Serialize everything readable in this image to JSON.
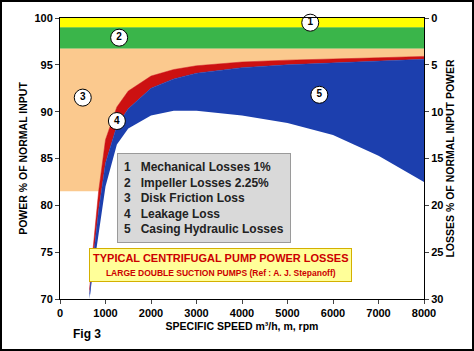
{
  "chart_data": {
    "type": "area",
    "title": "TYPICAL CENTRIFUGAL PUMP POWER LOSSES",
    "subtitle": "LARGE DOUBLE SUCTION PUMPS (Ref : A. J. Stepanoff)",
    "x_label": "SPECIFIC SPEED m³/h, m, rpm",
    "y_label": "POWER % OF NORMAL INPUT",
    "y2_label": "LOSSES % OF NORMAL INPUT POWER",
    "annotations": [
      "Fig 3"
    ],
    "xlim": [
      0,
      8000
    ],
    "xticks": [
      0,
      1000,
      2000,
      3000,
      4000,
      5000,
      6000,
      7000,
      8000
    ],
    "ylim": [
      70,
      100
    ],
    "yticks": [
      70,
      75,
      80,
      85,
      90,
      95,
      100
    ],
    "y2lim": [
      30,
      0
    ],
    "y2ticks": [
      0,
      5,
      10,
      15,
      20,
      25,
      30
    ],
    "grid": false,
    "series": [
      {
        "number": "3",
        "name": "Disk Friction Loss",
        "color": "#fbc98e",
        "x": [
          0,
          850,
          1000,
          1250,
          1500,
          2000,
          2500,
          3000,
          4000,
          5000,
          6000,
          7000,
          8000
        ],
        "lower": [
          81.5,
          81.5,
          87,
          90.5,
          92.2,
          93.8,
          94.5,
          94.9,
          95.3,
          95.5,
          95.6,
          95.75,
          95.9
        ],
        "values": [
          96.75,
          96.75,
          96.75,
          96.75,
          96.75,
          96.75,
          96.75,
          96.75,
          96.75,
          96.75,
          96.75,
          96.75,
          96.75
        ],
        "label_at": [
          500,
          91.5
        ]
      },
      {
        "number": "4",
        "name": "Leakage Loss",
        "color": "#cc1111",
        "x": [
          650,
          700,
          850,
          1000,
          1250,
          1500,
          2000,
          2500,
          3000,
          4000,
          5000,
          6000,
          7000,
          8000
        ],
        "lower": [
          70.5,
          73,
          79.5,
          84.5,
          88.5,
          90.3,
          92.5,
          93.5,
          94.1,
          94.7,
          95.0,
          95.2,
          95.4,
          95.6
        ],
        "values": [
          71,
          74,
          81.5,
          87,
          90.5,
          92.2,
          93.8,
          94.5,
          94.9,
          95.3,
          95.5,
          95.6,
          95.75,
          95.9
        ],
        "label_at": [
          1250,
          89
        ]
      },
      {
        "number": "5",
        "name": "Casing Hydraulic Losses",
        "color": "#1c3fae",
        "x": [
          650,
          700,
          850,
          1000,
          1250,
          1500,
          2000,
          2500,
          3000,
          4000,
          5000,
          6000,
          7000,
          8000
        ],
        "lower": [
          70,
          72,
          77,
          82,
          86.5,
          88.2,
          89.6,
          90.1,
          90.1,
          89.6,
          88.8,
          87.5,
          85.3,
          82.5
        ],
        "values": [
          70.5,
          73,
          79.5,
          84.5,
          88.5,
          90.3,
          92.5,
          93.5,
          94.1,
          94.7,
          95.0,
          95.2,
          95.4,
          95.6
        ],
        "label_at": [
          5700,
          91.8
        ]
      },
      {
        "number": "2",
        "name": "Impeller Losses 2.25%",
        "color": "#3ab54a",
        "x": [
          0,
          8000
        ],
        "lower": [
          96.75,
          96.75
        ],
        "values": [
          99,
          99
        ],
        "label_at": [
          1300,
          97.9
        ]
      },
      {
        "number": "1",
        "name": "Mechanical Losses 1%",
        "color": "#ffff00",
        "x": [
          0,
          8000
        ],
        "lower": [
          99,
          99
        ],
        "values": [
          100,
          100
        ],
        "label_at": [
          5500,
          99.5
        ]
      }
    ]
  }
}
